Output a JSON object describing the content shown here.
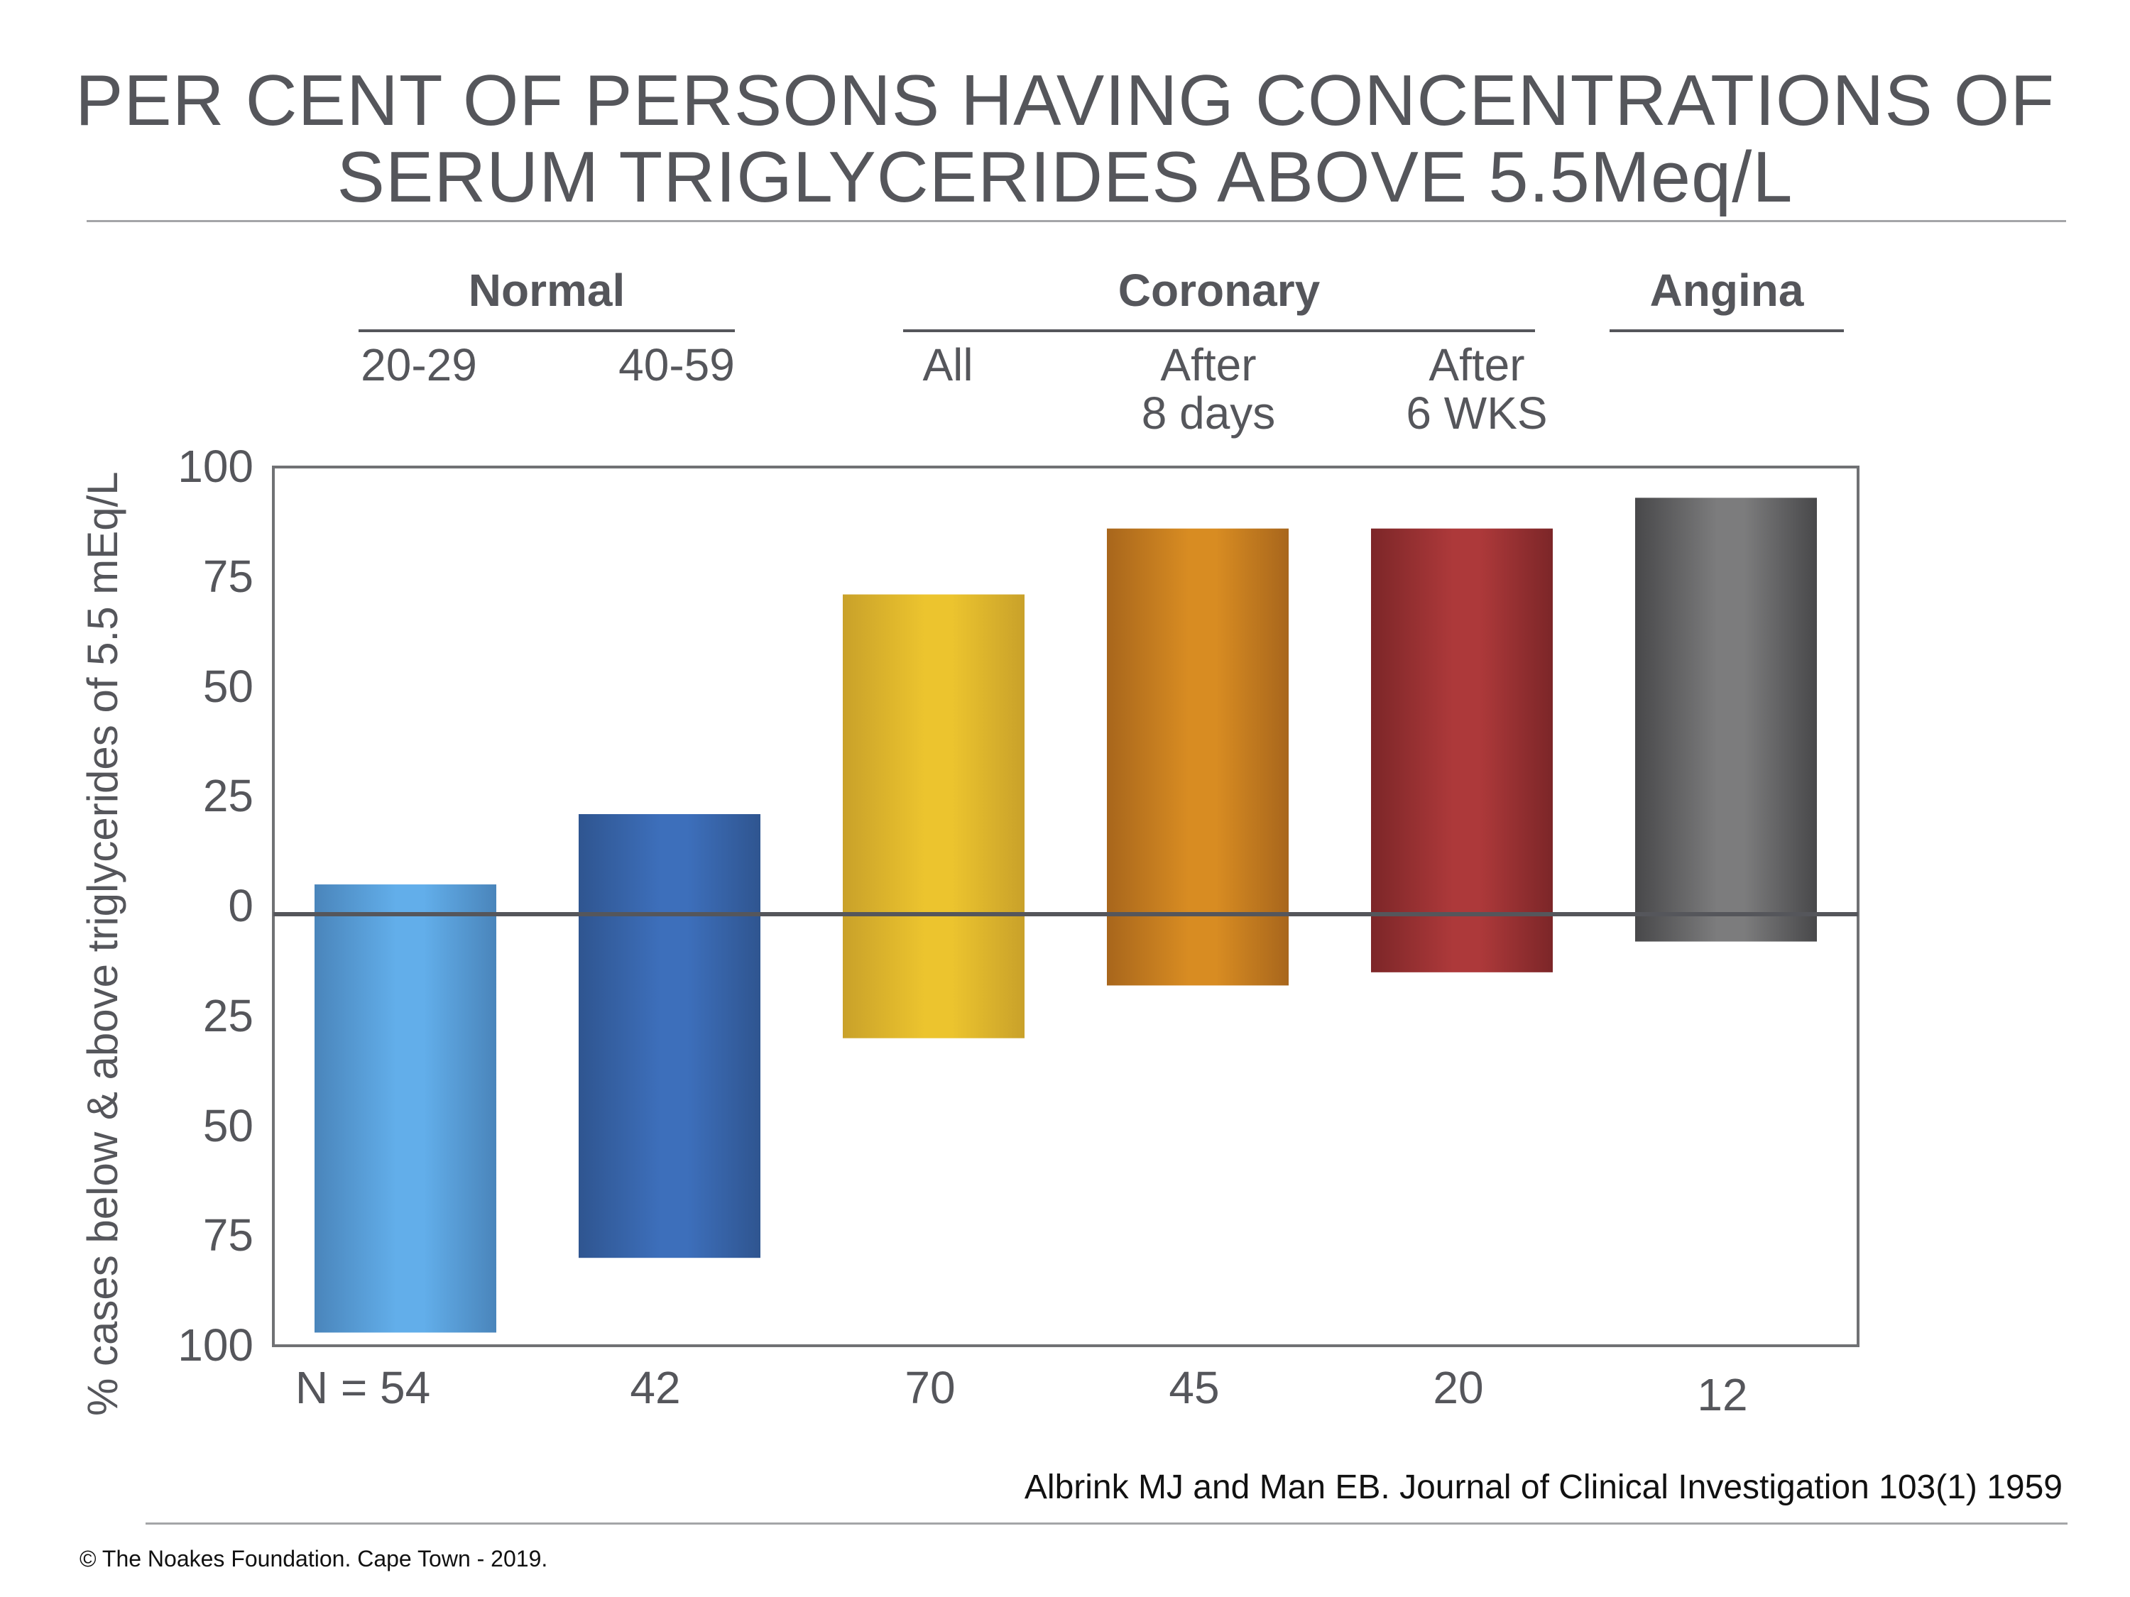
{
  "title_lines": [
    "PER CENT OF PERSONS HAVING CONCENTRATIONS OF",
    "SERUM TRIGLYCERIDES ABOVE 5.5Meq/L"
  ],
  "groups": [
    {
      "label": "Normal"
    },
    {
      "label": "Coronary"
    },
    {
      "label": "Angina"
    }
  ],
  "sublabels": [
    {
      "line1": "20-29",
      "line2": ""
    },
    {
      "line1": "40-59",
      "line2": ""
    },
    {
      "line1": "All",
      "line2": ""
    },
    {
      "line1": "After",
      "line2": "8 days"
    },
    {
      "line1": "After",
      "line2": "6 WKS"
    }
  ],
  "n_labels": [
    "N = 54",
    "42",
    "70",
    "45",
    "20",
    "12"
  ],
  "citation": "Albrink MJ and Man EB. Journal of Clinical Investigation 103(1) 1959",
  "copyright": "© The Noakes Foundation. Cape Town - 2019.",
  "chart_data": {
    "type": "bar",
    "title": "PER CENT OF PERSONS HAVING CONCENTRATIONS OF SERUM TRIGLYCERIDES ABOVE 5.5Meq/L",
    "ylabel": "% cases below &  above triglycerides of 5.5 mEq/L",
    "xlabel": "",
    "categories": [
      "Normal 20-29",
      "Normal 40-59",
      "Coronary All",
      "Coronary After 8 days",
      "Coronary After 6 WKS",
      "Angina"
    ],
    "y_tick_labels": [
      "100",
      "75",
      "50",
      "25",
      "0",
      "25",
      "50",
      "75",
      "100"
    ],
    "ylim": [
      -100,
      100
    ],
    "series": [
      {
        "values_above": [
          5,
          21,
          71,
          86,
          86,
          93
        ],
        "values_below": [
          97,
          80,
          30,
          18,
          15,
          8
        ]
      }
    ],
    "colors": [
      "#62aeea",
      "#3d6fbb",
      "#ecc42e",
      "#d88c22",
      "#ad393a",
      "#7c7c7d"
    ],
    "edge_colors": [
      "#4a85bb",
      "#2f5590",
      "#c9a12a",
      "#a8661c",
      "#7c2628",
      "#48484a"
    ],
    "grid": false,
    "legend": "none"
  }
}
